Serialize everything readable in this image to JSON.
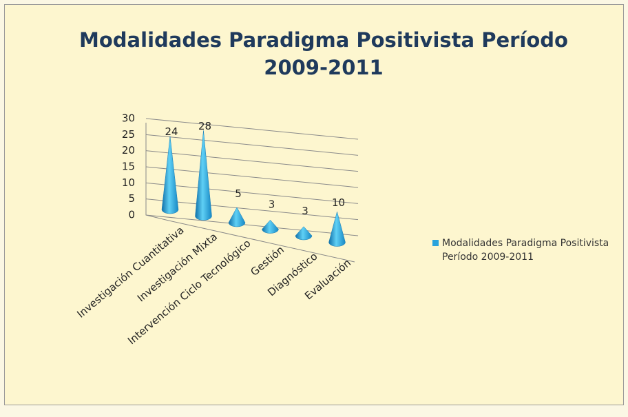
{
  "chart_data": {
    "type": "cone3d",
    "title": "Modalidades Paradigma Positivista Período 2009-2011",
    "categories": [
      "Investigación Cuantitativa",
      "Investigación Mixta",
      "Intervención Ciclo Tecnológico",
      "Gestión",
      "Diagnóstico",
      "Evaluación"
    ],
    "series": [
      {
        "name": "Modalidades Paradigma Positivista Período 2009-2011",
        "color": "#2aa3dc",
        "values": [
          24,
          28,
          5,
          3,
          3,
          10
        ]
      }
    ],
    "ylim": [
      0,
      30
    ],
    "yticks": [
      0,
      5,
      10,
      15,
      20,
      25,
      30
    ],
    "grid": true,
    "legend": "right"
  }
}
